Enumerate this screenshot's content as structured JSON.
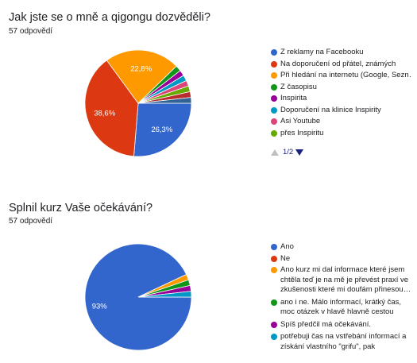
{
  "questions": [
    {
      "title": "Jak jste se o mně a qigongu dozvěděli?",
      "count": "57 odpovědí",
      "pager": "1/2"
    },
    {
      "title": "Splnil kurz Vaše očekávání?",
      "count": "57 odpovědí"
    }
  ],
  "chart_data": [
    {
      "type": "pie",
      "title": "Jak jste se o mně a qigongu dozvěděli?",
      "categories": [
        "Z reklamy na Facebooku",
        "Na doporučení od přátel, známých",
        "Při hledání na internetu (Google, Sezn…",
        "Z časopisu",
        "Inspirita",
        "Doporučení na klinice Inspirity",
        "Asi Youtube",
        "přes Inspiritu"
      ],
      "values": [
        26.3,
        38.6,
        22.8,
        1.75,
        1.75,
        1.75,
        1.75,
        1.75
      ],
      "remainder": 3.5,
      "data_labels": [
        "26,3%",
        "38,6%",
        "22,8%",
        "",
        "",
        "",
        "",
        ""
      ],
      "colors": [
        "#3366cc",
        "#dc3912",
        "#ff9900",
        "#109618",
        "#990099",
        "#0099c6",
        "#dd4477",
        "#66aa00"
      ],
      "remainder_colors": [
        "#b82e2e",
        "#316395"
      ],
      "legend_position": "right",
      "legend_page": "1/2"
    },
    {
      "type": "pie",
      "title": "Splnil kurz Vaše očekávání?",
      "categories": [
        "Ano",
        "Ne",
        "Ano kurz mi dal informace které jsem chtěla teď je na mě je převést praxí ve zkušenosti které mi doufám přinesou…",
        "ano i ne. Málo informací, krátký čas, moc otázek v hlavě hlavně cestou domů",
        "Spíš předčil má očekávání.",
        "potřebuji čas na vstřebání informací a získání vlastního \"grifu\", pak vyhodnotím"
      ],
      "values": [
        93,
        0.0,
        1.75,
        1.75,
        1.75,
        1.75
      ],
      "data_labels": [
        "93%",
        "",
        "",
        "",
        "",
        ""
      ],
      "colors": [
        "#3366cc",
        "#dc3912",
        "#ff9900",
        "#109618",
        "#990099",
        "#0099c6"
      ],
      "legend_position": "right"
    }
  ]
}
